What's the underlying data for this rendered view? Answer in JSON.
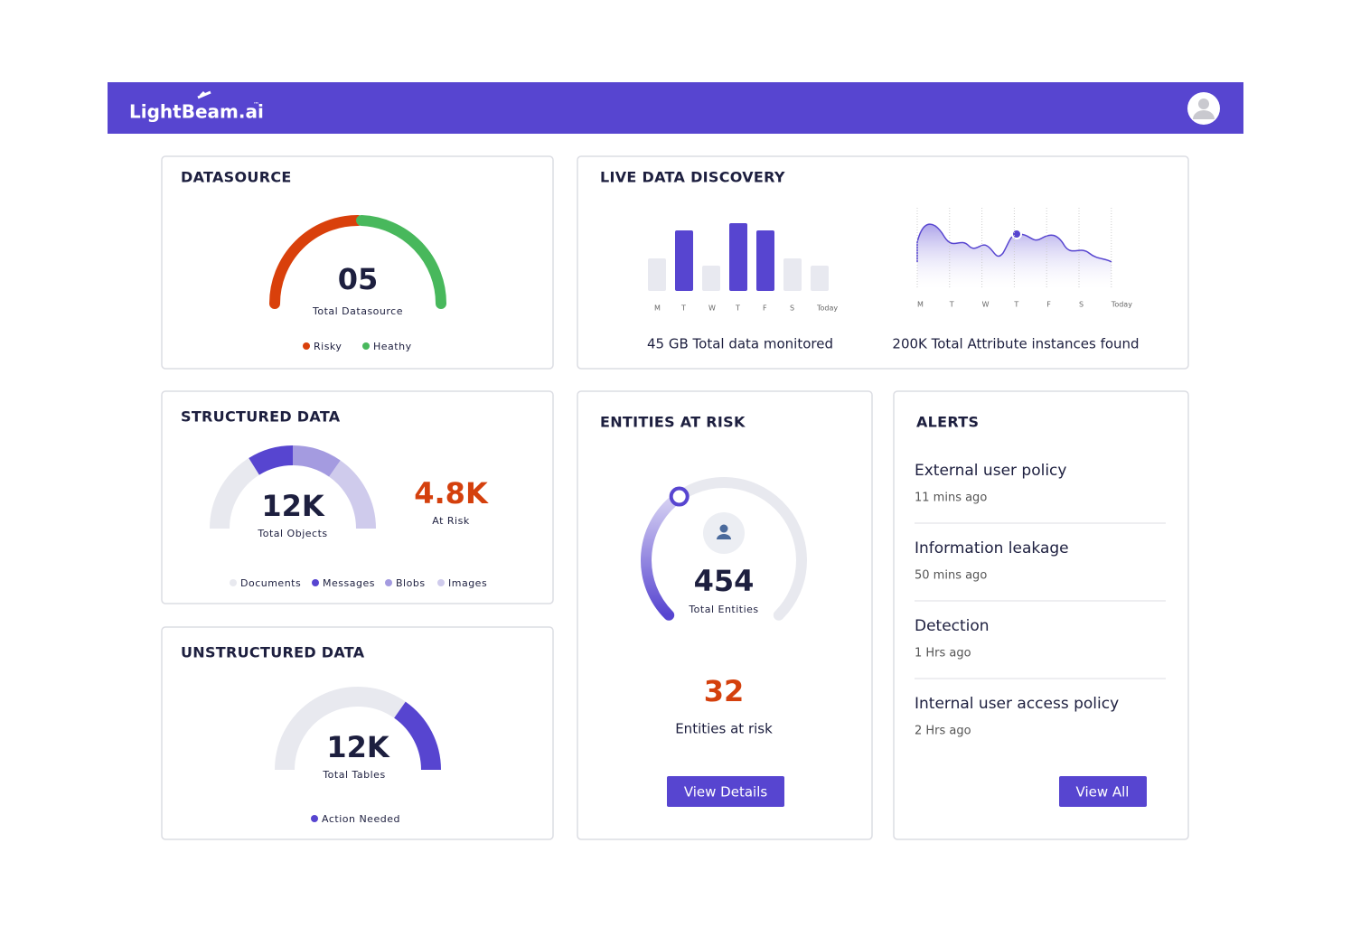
{
  "header": {
    "logo": "LightBeam.ai",
    "trademark": "™"
  },
  "datasource": {
    "title": "DATASOURCE",
    "value": "05",
    "label": "Total Datasource",
    "legend": [
      "Risky",
      "Heathy"
    ]
  },
  "live_data_discovery": {
    "title": "LIVE DATA DISCOVERY",
    "bar_days": [
      "M",
      "T",
      "W",
      "T",
      "F",
      "S",
      "Today"
    ],
    "line_days": [
      "M",
      "T",
      "W",
      "T",
      "F",
      "S",
      "Today"
    ],
    "bar_caption": "45 GB Total data monitored",
    "line_caption": "200K Total Attribute instances found"
  },
  "structured_data": {
    "title": "STRUCTURED DATA",
    "value": "12K",
    "label": "Total Objects",
    "at_risk_value": "4.8K",
    "at_risk_label": "At Risk",
    "legend": [
      "Documents",
      "Messages",
      "Blobs",
      "Images"
    ]
  },
  "unstructured_data": {
    "title": "UNSTRUCTURED DATA",
    "value": "12K",
    "label": "Total Tables",
    "legend": [
      "Action Needed"
    ]
  },
  "entities_at_risk": {
    "title": "ENTITIES AT RISK",
    "value": "454",
    "label": "Total Entities",
    "at_risk_value": "32",
    "at_risk_label": "Entities at risk",
    "button": "View Details"
  },
  "alerts": {
    "title": "ALERTS",
    "items": [
      {
        "title": "External user policy",
        "time": "11 mins ago"
      },
      {
        "title": "Information leakage",
        "time": "50 mins ago"
      },
      {
        "title": "Detection",
        "time": "1 Hrs ago"
      },
      {
        "title": "Internal user access policy",
        "time": "2 Hrs ago"
      }
    ],
    "button": "View All"
  }
}
